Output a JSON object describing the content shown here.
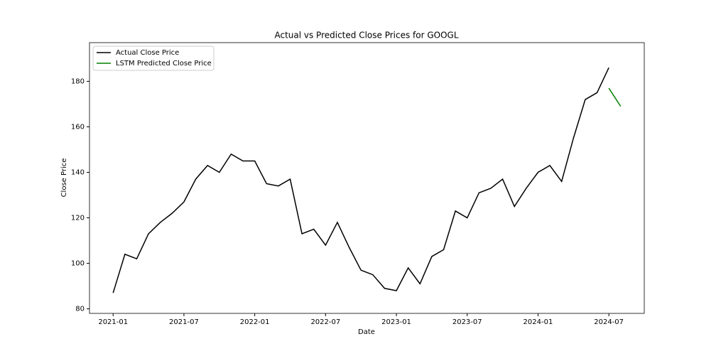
{
  "chart_data": {
    "type": "line",
    "title": "Actual vs Predicted Close Prices for GOOGL",
    "x_label": "Date",
    "y_label": "Close Price",
    "series": [
      {
        "name": "Actual Close Price",
        "color": "#000000",
        "x": [
          "2021-01",
          "2021-02",
          "2021-03",
          "2021-04",
          "2021-05",
          "2021-06",
          "2021-07",
          "2021-08",
          "2021-09",
          "2021-10",
          "2021-11",
          "2021-12",
          "2022-01",
          "2022-02",
          "2022-03",
          "2022-04",
          "2022-05",
          "2022-06",
          "2022-07",
          "2022-08",
          "2022-09",
          "2022-10",
          "2022-11",
          "2022-12",
          "2023-01",
          "2023-02",
          "2023-03",
          "2023-04",
          "2023-05",
          "2023-06",
          "2023-07",
          "2023-08",
          "2023-09",
          "2023-10",
          "2023-11",
          "2023-12",
          "2024-01",
          "2024-02",
          "2024-03",
          "2024-04",
          "2024-05",
          "2024-06",
          "2024-07"
        ],
        "values": [
          87,
          104,
          102,
          113,
          118,
          122,
          127,
          137,
          143,
          140,
          148,
          145,
          145,
          135,
          134,
          137,
          113,
          115,
          108,
          118,
          107,
          97,
          95,
          89,
          88,
          98,
          91,
          103,
          106,
          123,
          120,
          131,
          133,
          137,
          125,
          133,
          140,
          143,
          136,
          155,
          172,
          175,
          186
        ]
      },
      {
        "name": "LSTM Predicted Close Price",
        "color": "#008000",
        "x": [
          "2024-07",
          "2024-08"
        ],
        "values": [
          177,
          169
        ]
      }
    ],
    "xlim": [
      "2020-11",
      "2024-10"
    ],
    "xticks": [
      "2021-01",
      "2021-07",
      "2022-01",
      "2022-07",
      "2023-01",
      "2023-07",
      "2024-01",
      "2024-07"
    ],
    "ylim": [
      78,
      197
    ],
    "yticks": [
      80,
      100,
      120,
      140,
      160,
      180
    ],
    "legend": "upper-left"
  }
}
